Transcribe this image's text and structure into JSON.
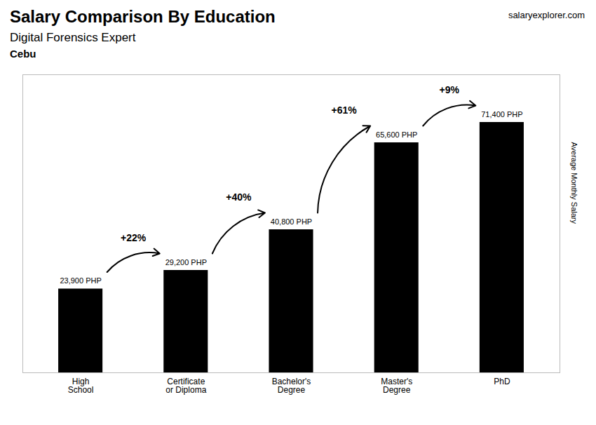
{
  "chart_data": {
    "type": "bar",
    "title": "Salary Comparison By Education",
    "subtitle": "Digital Forensics Expert",
    "location": "Cebu",
    "source": "salaryexplorer.com",
    "ylabel": "Average Monthly Salary",
    "categories": [
      "High\nSchool",
      "Certificate\nor Diploma",
      "Bachelor's\nDegree",
      "Master's\nDegree",
      "PhD"
    ],
    "values": [
      23900,
      29200,
      40800,
      65600,
      71400
    ],
    "value_labels": [
      "23,900 PHP",
      "29,200 PHP",
      "40,800 PHP",
      "65,600 PHP",
      "71,400 PHP"
    ],
    "data_labels": true,
    "annotations": [
      "+22%",
      "+40%",
      "+61%",
      "+9%"
    ],
    "ylim": [
      0,
      85000
    ],
    "tick_labels": "x"
  }
}
